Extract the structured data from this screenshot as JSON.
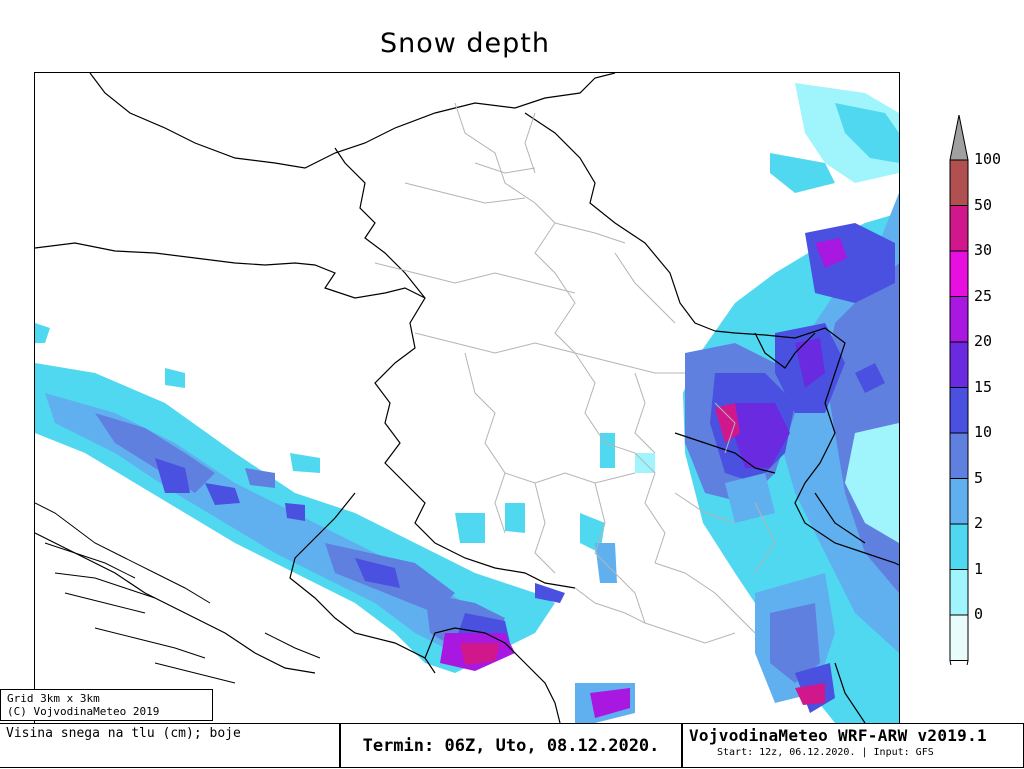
{
  "title": "Snow depth",
  "legend": {
    "ticks": [
      "100",
      "50",
      "30",
      "25",
      "20",
      "15",
      "10",
      "5",
      "2",
      "1",
      "0"
    ],
    "colors": [
      "#b05050",
      "#d0188c",
      "#e810e0",
      "#a818e0",
      "#6a2ae0",
      "#4a50e0",
      "#6080e0",
      "#60b0f0",
      "#50d8f0",
      "#a0f4fc",
      "#e8fcfc"
    ],
    "cap_color": "#a0a0a0"
  },
  "footer": {
    "grid_line1": "Grid 3km x 3km",
    "grid_line2": "(C) VojvodinaMeteo 2019",
    "variable": "Visina snega na tlu (cm); boje",
    "termin": "Termin: 06Z, Uto, 08.12.2020.",
    "model": "VojvodinaMeteo WRF-ARW v2019.1",
    "run": "Start: 12z, 06.12.2020. | Input: GFS"
  }
}
